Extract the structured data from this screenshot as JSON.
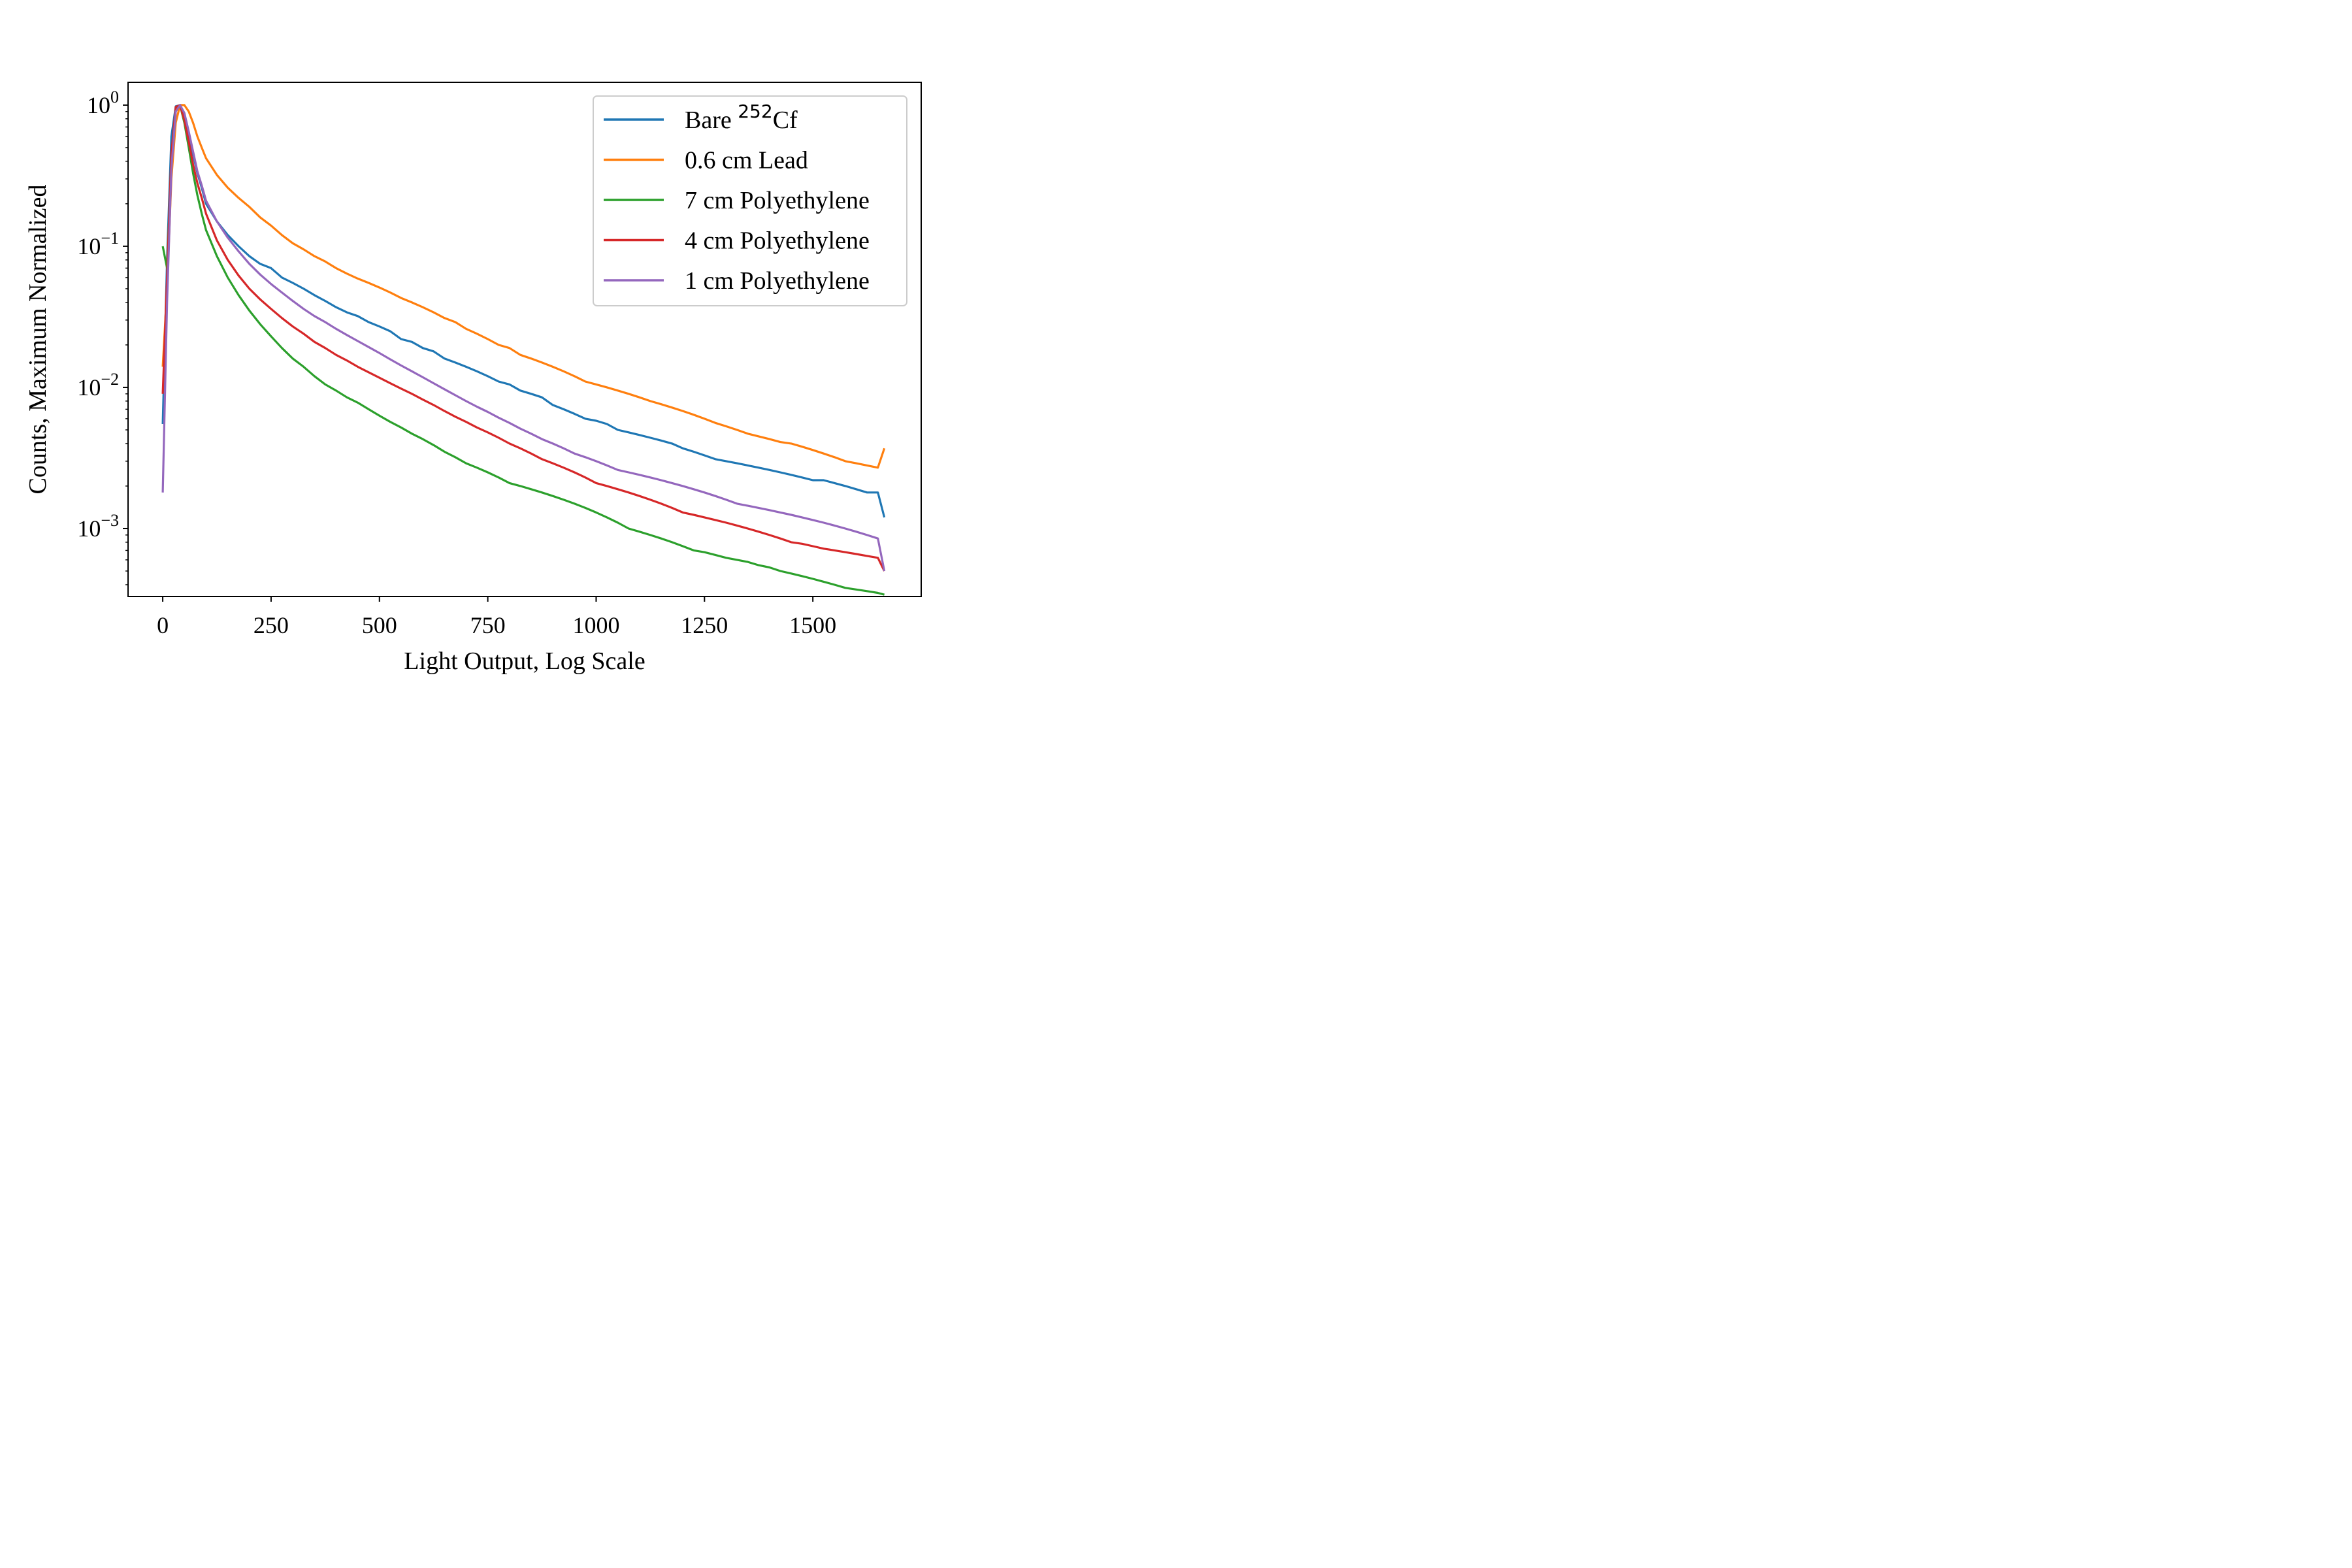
{
  "chart_data": {
    "type": "line",
    "title": "",
    "xlabel": "Light Output, Log Scale",
    "ylabel": "Counts, Maximum Normalized",
    "xlim": [
      -80,
      1750
    ],
    "ylim": [
      0.00033,
      1.45
    ],
    "yscale": "log",
    "x_ticks": [
      0,
      250,
      500,
      750,
      1000,
      1250,
      1500
    ],
    "y_ticks": [
      {
        "value": 1,
        "base": "10",
        "exp": "0"
      },
      {
        "value": 0.1,
        "base": "10",
        "exp": "−1"
      },
      {
        "value": 0.01,
        "base": "10",
        "exp": "−2"
      },
      {
        "value": 0.001,
        "base": "10",
        "exp": "−3"
      }
    ],
    "grid": false,
    "legend_position": "top-right",
    "colors": {
      "blue": "#1f77b4",
      "orange": "#ff7f0e",
      "green": "#2ca02c",
      "red": "#d62728",
      "purple": "#9467bd"
    },
    "series": [
      {
        "name_main": "Bare ",
        "name_sup": "252",
        "name_tail": "Cf",
        "color": "#1f77b4",
        "x": [
          0,
          10,
          20,
          30,
          40,
          50,
          60,
          70,
          80,
          90,
          100,
          125,
          150,
          175,
          200,
          225,
          250,
          275,
          300,
          325,
          350,
          375,
          400,
          425,
          450,
          475,
          500,
          525,
          550,
          575,
          600,
          625,
          650,
          675,
          700,
          725,
          750,
          775,
          800,
          825,
          850,
          875,
          900,
          925,
          950,
          975,
          1000,
          1025,
          1050,
          1075,
          1100,
          1125,
          1150,
          1175,
          1200,
          1225,
          1250,
          1275,
          1300,
          1325,
          1350,
          1375,
          1400,
          1425,
          1450,
          1475,
          1500,
          1525,
          1550,
          1575,
          1600,
          1625,
          1650,
          1665
        ],
        "y": [
          0.0055,
          0.08,
          0.6,
          0.98,
          1.0,
          0.85,
          0.62,
          0.45,
          0.33,
          0.26,
          0.2,
          0.15,
          0.12,
          0.1,
          0.085,
          0.075,
          0.07,
          0.06,
          0.055,
          0.05,
          0.045,
          0.041,
          0.037,
          0.034,
          0.032,
          0.029,
          0.027,
          0.025,
          0.022,
          0.021,
          0.019,
          0.018,
          0.016,
          0.015,
          0.014,
          0.013,
          0.012,
          0.011,
          0.0105,
          0.0095,
          0.009,
          0.0085,
          0.0075,
          0.007,
          0.0065,
          0.006,
          0.0058,
          0.0055,
          0.005,
          0.0048,
          0.0046,
          0.0044,
          0.0042,
          0.004,
          0.0037,
          0.0035,
          0.0033,
          0.0031,
          0.003,
          0.0029,
          0.0028,
          0.0027,
          0.0026,
          0.0025,
          0.0024,
          0.0023,
          0.0022,
          0.0022,
          0.0021,
          0.002,
          0.0019,
          0.0018,
          0.0018,
          0.0012
        ]
      },
      {
        "name_main": "0.6 cm Lead",
        "color": "#ff7f0e",
        "x": [
          0,
          10,
          20,
          30,
          40,
          50,
          60,
          70,
          80,
          90,
          100,
          125,
          150,
          175,
          200,
          225,
          250,
          275,
          300,
          325,
          350,
          375,
          400,
          425,
          450,
          475,
          500,
          525,
          550,
          575,
          600,
          625,
          650,
          675,
          700,
          725,
          750,
          775,
          800,
          825,
          850,
          875,
          900,
          925,
          950,
          975,
          1000,
          1025,
          1050,
          1075,
          1100,
          1125,
          1150,
          1175,
          1200,
          1225,
          1250,
          1275,
          1300,
          1325,
          1350,
          1375,
          1400,
          1425,
          1450,
          1475,
          1500,
          1525,
          1550,
          1575,
          1600,
          1625,
          1650,
          1665
        ],
        "y": [
          0.014,
          0.05,
          0.3,
          0.75,
          1.0,
          1.0,
          0.9,
          0.75,
          0.6,
          0.5,
          0.42,
          0.32,
          0.26,
          0.22,
          0.19,
          0.16,
          0.14,
          0.12,
          0.105,
          0.095,
          0.085,
          0.078,
          0.07,
          0.064,
          0.059,
          0.055,
          0.051,
          0.047,
          0.043,
          0.04,
          0.037,
          0.034,
          0.031,
          0.029,
          0.026,
          0.024,
          0.022,
          0.02,
          0.019,
          0.017,
          0.016,
          0.015,
          0.014,
          0.013,
          0.012,
          0.011,
          0.0105,
          0.01,
          0.0095,
          0.009,
          0.0085,
          0.008,
          0.0076,
          0.0072,
          0.0068,
          0.0064,
          0.006,
          0.0056,
          0.0053,
          0.005,
          0.0047,
          0.0045,
          0.0043,
          0.0041,
          0.004,
          0.0038,
          0.0036,
          0.0034,
          0.0032,
          0.003,
          0.0029,
          0.0028,
          0.0027,
          0.0037
        ]
      },
      {
        "name_main": "7 cm Polyethylene",
        "color": "#2ca02c",
        "x": [
          0,
          10,
          20,
          30,
          40,
          50,
          60,
          70,
          80,
          90,
          100,
          125,
          150,
          175,
          200,
          225,
          250,
          275,
          300,
          325,
          350,
          375,
          400,
          425,
          450,
          475,
          500,
          525,
          550,
          575,
          600,
          625,
          650,
          675,
          700,
          725,
          750,
          775,
          800,
          825,
          850,
          875,
          900,
          925,
          950,
          975,
          1000,
          1025,
          1050,
          1075,
          1100,
          1125,
          1150,
          1175,
          1200,
          1225,
          1250,
          1275,
          1300,
          1325,
          1350,
          1375,
          1400,
          1425,
          1450,
          1475,
          1500,
          1525,
          1550,
          1575,
          1600,
          1625,
          1650,
          1665
        ],
        "y": [
          0.1,
          0.07,
          0.4,
          0.95,
          1.0,
          0.75,
          0.5,
          0.33,
          0.23,
          0.17,
          0.13,
          0.085,
          0.06,
          0.045,
          0.035,
          0.028,
          0.023,
          0.019,
          0.016,
          0.014,
          0.012,
          0.0105,
          0.0095,
          0.0085,
          0.0078,
          0.007,
          0.0063,
          0.0057,
          0.0052,
          0.0047,
          0.0043,
          0.0039,
          0.0035,
          0.0032,
          0.0029,
          0.0027,
          0.0025,
          0.0023,
          0.0021,
          0.002,
          0.0019,
          0.0018,
          0.0017,
          0.0016,
          0.0015,
          0.0014,
          0.0013,
          0.0012,
          0.0011,
          0.001,
          0.00095,
          0.0009,
          0.00085,
          0.0008,
          0.00075,
          0.0007,
          0.00068,
          0.00065,
          0.00062,
          0.0006,
          0.00058,
          0.00055,
          0.00053,
          0.0005,
          0.00048,
          0.00046,
          0.00044,
          0.00042,
          0.0004,
          0.00038,
          0.00037,
          0.00036,
          0.00035,
          0.00034
        ]
      },
      {
        "name_main": "4 cm Polyethylene",
        "color": "#d62728",
        "x": [
          0,
          10,
          20,
          30,
          40,
          50,
          60,
          70,
          80,
          90,
          100,
          125,
          150,
          175,
          200,
          225,
          250,
          275,
          300,
          325,
          350,
          375,
          400,
          425,
          450,
          475,
          500,
          525,
          550,
          575,
          600,
          625,
          650,
          675,
          700,
          725,
          750,
          775,
          800,
          825,
          850,
          875,
          900,
          925,
          950,
          975,
          1000,
          1025,
          1050,
          1075,
          1100,
          1125,
          1150,
          1175,
          1200,
          1225,
          1250,
          1275,
          1300,
          1325,
          1350,
          1375,
          1400,
          1425,
          1450,
          1475,
          1500,
          1525,
          1550,
          1575,
          1600,
          1625,
          1650,
          1665
        ],
        "y": [
          0.009,
          0.06,
          0.45,
          0.97,
          1.0,
          0.78,
          0.55,
          0.38,
          0.28,
          0.22,
          0.17,
          0.11,
          0.08,
          0.062,
          0.05,
          0.042,
          0.036,
          0.031,
          0.027,
          0.024,
          0.021,
          0.019,
          0.017,
          0.0155,
          0.014,
          0.0128,
          0.0117,
          0.0107,
          0.0098,
          0.009,
          0.0082,
          0.0075,
          0.0068,
          0.0062,
          0.0057,
          0.0052,
          0.0048,
          0.0044,
          0.004,
          0.0037,
          0.0034,
          0.0031,
          0.0029,
          0.0027,
          0.0025,
          0.0023,
          0.0021,
          0.002,
          0.0019,
          0.0018,
          0.0017,
          0.0016,
          0.0015,
          0.0014,
          0.0013,
          0.00125,
          0.0012,
          0.00115,
          0.0011,
          0.00105,
          0.001,
          0.00095,
          0.0009,
          0.00085,
          0.0008,
          0.00078,
          0.00075,
          0.00072,
          0.0007,
          0.00068,
          0.00066,
          0.00064,
          0.00062,
          0.0005
        ]
      },
      {
        "name_main": "1 cm Polyethylene",
        "color": "#9467bd",
        "x": [
          0,
          10,
          20,
          30,
          40,
          50,
          60,
          70,
          80,
          90,
          100,
          125,
          150,
          175,
          200,
          225,
          250,
          275,
          300,
          325,
          350,
          375,
          400,
          425,
          450,
          475,
          500,
          525,
          550,
          575,
          600,
          625,
          650,
          675,
          700,
          725,
          750,
          775,
          800,
          825,
          850,
          875,
          900,
          925,
          950,
          975,
          1000,
          1025,
          1050,
          1075,
          1100,
          1125,
          1150,
          1175,
          1200,
          1225,
          1250,
          1275,
          1300,
          1325,
          1350,
          1375,
          1400,
          1425,
          1450,
          1475,
          1500,
          1525,
          1550,
          1575,
          1600,
          1625,
          1650,
          1665
        ],
        "y": [
          0.0018,
          0.04,
          0.35,
          0.9,
          1.0,
          0.88,
          0.65,
          0.47,
          0.34,
          0.27,
          0.21,
          0.15,
          0.115,
          0.092,
          0.075,
          0.063,
          0.054,
          0.047,
          0.041,
          0.036,
          0.032,
          0.029,
          0.026,
          0.0235,
          0.0213,
          0.0193,
          0.0175,
          0.0158,
          0.0143,
          0.013,
          0.0118,
          0.0107,
          0.0097,
          0.0088,
          0.008,
          0.0073,
          0.0067,
          0.0061,
          0.0056,
          0.0051,
          0.0047,
          0.0043,
          0.004,
          0.0037,
          0.0034,
          0.0032,
          0.003,
          0.0028,
          0.0026,
          0.0025,
          0.0024,
          0.0023,
          0.0022,
          0.0021,
          0.002,
          0.0019,
          0.0018,
          0.0017,
          0.0016,
          0.0015,
          0.00145,
          0.0014,
          0.00135,
          0.0013,
          0.00125,
          0.0012,
          0.00115,
          0.0011,
          0.00105,
          0.001,
          0.00095,
          0.0009,
          0.00085,
          0.0005
        ]
      }
    ]
  }
}
